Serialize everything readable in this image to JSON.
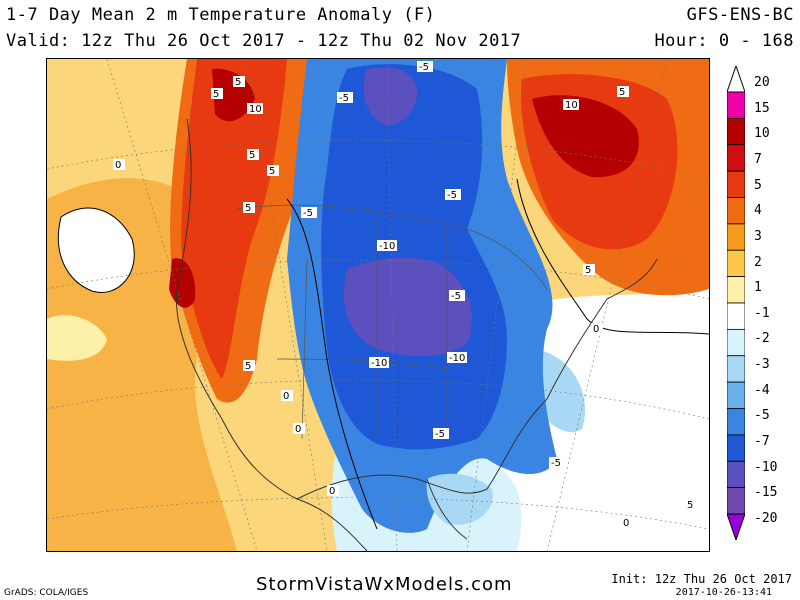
{
  "header": {
    "title": "1-7 Day Mean 2 m Temperature Anomaly (F)",
    "valid": "Valid: 12z Thu 26 Oct 2017 - 12z Thu 02 Nov 2017",
    "model": "GFS-ENS-BC",
    "hour": "Hour: 0 - 168"
  },
  "footer": {
    "credit": "GrADS: COLA/IGES",
    "site": "StormVistaWxModels.com",
    "init": "Init: 12z Thu 26 Oct 2017",
    "generated": "2017-10-26-13:41"
  },
  "legend": {
    "levels": [
      "20",
      "15",
      "10",
      "7",
      "5",
      "4",
      "3",
      "2",
      "1",
      "-1",
      "-2",
      "-3",
      "-4",
      "-5",
      "-7",
      "-10",
      "-15",
      "-20"
    ],
    "colors": [
      "#e0007a",
      "#f000a8",
      "#b40000",
      "#d01010",
      "#e83a10",
      "#f06c14",
      "#f89a1e",
      "#fcc84a",
      "#fdf0a8",
      "#ffffff",
      "#d8f4fa",
      "#a8d8f4",
      "#6ab2ec",
      "#3a84e2",
      "#1e58d6",
      "#5c4fbe",
      "#6e4ab0",
      "#9a00d8"
    ],
    "top_arrow_color": "#ffffff",
    "bottom_arrow_color": "#9a00d8"
  },
  "contour_labels": [
    {
      "id": "l1",
      "text": "5"
    },
    {
      "id": "l2",
      "text": "10"
    },
    {
      "id": "l3",
      "text": "5"
    },
    {
      "id": "l4",
      "text": "-5"
    },
    {
      "id": "l5",
      "text": "-5"
    },
    {
      "id": "l6",
      "text": "10"
    },
    {
      "id": "l7",
      "text": "5"
    },
    {
      "id": "l8",
      "text": "5"
    },
    {
      "id": "l9",
      "text": "0"
    },
    {
      "id": "l10",
      "text": "5"
    },
    {
      "id": "l11",
      "text": "5"
    },
    {
      "id": "l12",
      "text": "-5"
    },
    {
      "id": "l13",
      "text": "-5"
    },
    {
      "id": "l14",
      "text": "-10"
    },
    {
      "id": "l15",
      "text": "-5"
    },
    {
      "id": "l16",
      "text": "5"
    },
    {
      "id": "l17",
      "text": "0"
    },
    {
      "id": "l18",
      "text": "-10"
    },
    {
      "id": "l19",
      "text": "-10"
    },
    {
      "id": "l20",
      "text": "5"
    },
    {
      "id": "l21",
      "text": "0"
    },
    {
      "id": "l22",
      "text": "-5"
    },
    {
      "id": "l23",
      "text": "-5"
    },
    {
      "id": "l24",
      "text": "0"
    },
    {
      "id": "l25",
      "text": "5"
    },
    {
      "id": "l26",
      "text": "0"
    },
    {
      "id": "l27",
      "text": "0"
    }
  ]
}
